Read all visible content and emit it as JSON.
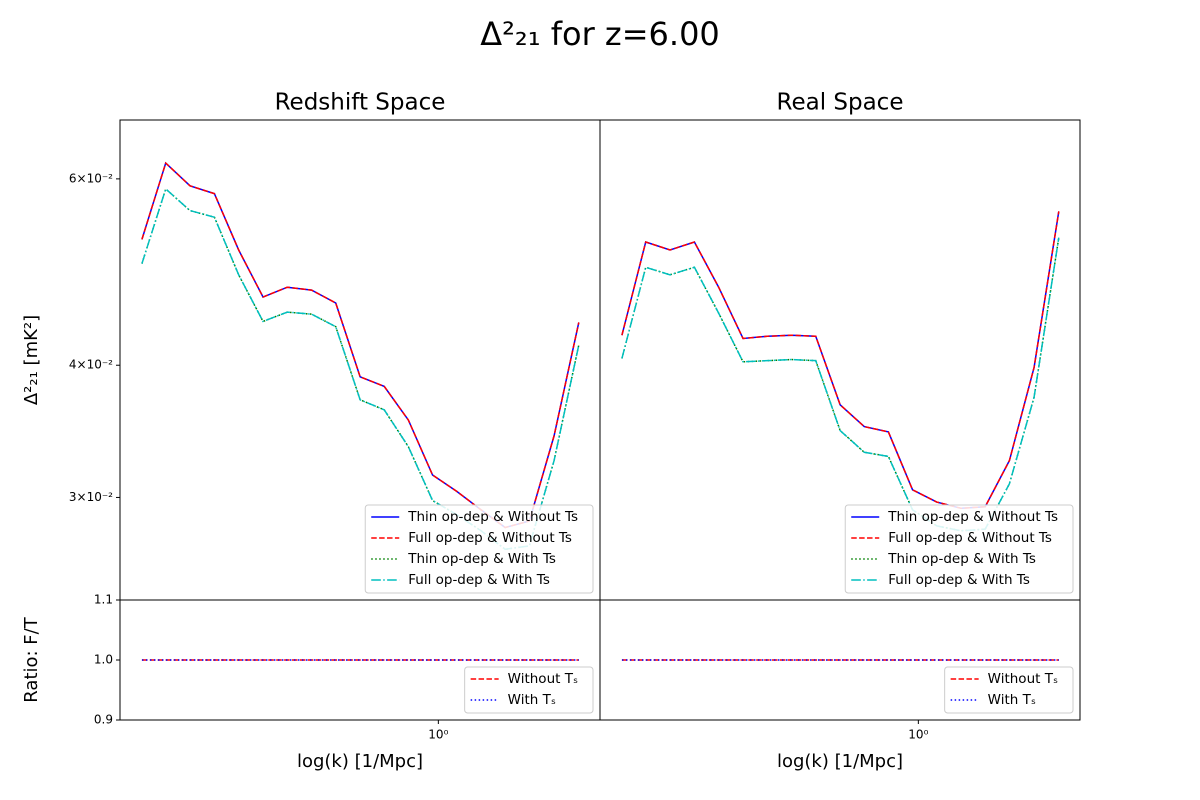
{
  "title": "Δ²₂₁ for z=6.00",
  "chart_data": [
    {
      "type": "line",
      "title": "Redshift Space",
      "ylabel": "Δ²₂₁ [mK²]",
      "x": [
        0.273,
        0.303,
        0.337,
        0.375,
        0.417,
        0.464,
        0.516,
        0.574,
        0.638,
        0.71,
        0.789,
        0.877,
        0.975,
        1.084,
        1.206,
        1.34,
        1.49,
        1.66,
        1.85
      ],
      "xlim": [
        0.248,
        2.03
      ],
      "xscale": "log",
      "ylim": [
        0.024,
        0.0682
      ],
      "yscale": "log",
      "yticks": [
        {
          "value": 0.06,
          "label": "6×10⁻²"
        },
        {
          "value": 0.04,
          "label": "4×10⁻²"
        },
        {
          "value": 0.03,
          "label": "3×10⁻²"
        }
      ],
      "legend": "lower right",
      "series": [
        {
          "name": "Thin op-dep & Without Ts",
          "color": "#0000ff",
          "linestyle": "solid",
          "values": [
            0.0526,
            0.0621,
            0.0591,
            0.0581,
            0.0514,
            0.0464,
            0.0474,
            0.0471,
            0.0458,
            0.039,
            0.0382,
            0.0355,
            0.0315,
            0.0304,
            0.0292,
            0.0281,
            0.0285,
            0.0343,
            0.0439
          ]
        },
        {
          "name": "Full op-dep & Without Ts",
          "color": "#ff0000",
          "linestyle": "dashed",
          "values": [
            0.0526,
            0.0621,
            0.0591,
            0.0581,
            0.0514,
            0.0464,
            0.0474,
            0.0471,
            0.0458,
            0.039,
            0.0382,
            0.0355,
            0.0315,
            0.0304,
            0.0292,
            0.0281,
            0.0285,
            0.0343,
            0.0439
          ]
        },
        {
          "name": "Thin op-dep & With Ts",
          "color": "#008000",
          "linestyle": "dotted",
          "values": [
            0.0499,
            0.0587,
            0.056,
            0.0552,
            0.0487,
            0.044,
            0.0449,
            0.0447,
            0.0435,
            0.0371,
            0.0363,
            0.0335,
            0.0298,
            0.0289,
            0.0279,
            0.0268,
            0.027,
            0.0325,
            0.0418
          ]
        },
        {
          "name": "Full op-dep & With Ts",
          "color": "#00bfbf",
          "linestyle": "dashdot",
          "values": [
            0.0499,
            0.0587,
            0.056,
            0.0552,
            0.0487,
            0.044,
            0.0449,
            0.0447,
            0.0435,
            0.0371,
            0.0363,
            0.0335,
            0.0298,
            0.0289,
            0.0279,
            0.0268,
            0.027,
            0.0325,
            0.0418
          ]
        }
      ]
    },
    {
      "type": "line",
      "title": "Real Space",
      "x": [
        0.273,
        0.303,
        0.337,
        0.375,
        0.417,
        0.464,
        0.516,
        0.574,
        0.638,
        0.71,
        0.789,
        0.877,
        0.975,
        1.084,
        1.206,
        1.34,
        1.49,
        1.66,
        1.85
      ],
      "xlim": [
        0.248,
        2.03
      ],
      "xscale": "log",
      "ylim": [
        0.024,
        0.0682
      ],
      "yscale": "log",
      "legend": "lower right",
      "series": [
        {
          "name": "Thin op-dep & Without Ts",
          "color": "#0000ff",
          "linestyle": "solid",
          "values": [
            0.0427,
            0.0523,
            0.0514,
            0.0523,
            0.0474,
            0.0424,
            0.0426,
            0.0427,
            0.0426,
            0.0367,
            0.035,
            0.0346,
            0.0305,
            0.0297,
            0.0293,
            0.0294,
            0.0325,
            0.0398,
            0.0559
          ]
        },
        {
          "name": "Full op-dep & Without Ts",
          "color": "#ff0000",
          "linestyle": "dashed",
          "values": [
            0.0427,
            0.0523,
            0.0514,
            0.0523,
            0.0474,
            0.0424,
            0.0426,
            0.0427,
            0.0426,
            0.0367,
            0.035,
            0.0346,
            0.0305,
            0.0297,
            0.0293,
            0.0294,
            0.0325,
            0.0398,
            0.0559
          ]
        },
        {
          "name": "Thin op-dep & With Ts",
          "color": "#008000",
          "linestyle": "dotted",
          "values": [
            0.0406,
            0.0495,
            0.0487,
            0.0495,
            0.0448,
            0.0403,
            0.0404,
            0.0405,
            0.0404,
            0.0347,
            0.0331,
            0.0328,
            0.0292,
            0.0282,
            0.0279,
            0.028,
            0.0309,
            0.0373,
            0.0528
          ]
        },
        {
          "name": "Full op-dep & With Ts",
          "color": "#00bfbf",
          "linestyle": "dashdot",
          "values": [
            0.0406,
            0.0495,
            0.0487,
            0.0495,
            0.0448,
            0.0403,
            0.0404,
            0.0405,
            0.0404,
            0.0347,
            0.0331,
            0.0328,
            0.0292,
            0.0282,
            0.0279,
            0.028,
            0.0309,
            0.0373,
            0.0528
          ]
        }
      ]
    },
    {
      "type": "line",
      "ylabel": "Ratio: F/T",
      "xlabel": "log(k) [1/Mpc]",
      "x": [
        0.273,
        0.303,
        0.337,
        0.375,
        0.417,
        0.464,
        0.516,
        0.574,
        0.638,
        0.71,
        0.789,
        0.877,
        0.975,
        1.084,
        1.206,
        1.34,
        1.49,
        1.66,
        1.85
      ],
      "xlim": [
        0.248,
        2.03
      ],
      "xscale": "log",
      "ylim": [
        0.9,
        1.1
      ],
      "yscale": "linear",
      "xticks": [
        {
          "value": 1,
          "label": "10⁰"
        }
      ],
      "yticks": [
        {
          "value": 0.9,
          "label": "0.9"
        },
        {
          "value": 1.0,
          "label": "1.0"
        },
        {
          "value": 1.1,
          "label": "1.1"
        }
      ],
      "legend": "lower right",
      "series": [
        {
          "name": "Without Tₛ",
          "color": "#ff0000",
          "linestyle": "dashed",
          "values": [
            1,
            1,
            1,
            1,
            1,
            1,
            1,
            1,
            1,
            1,
            1,
            1,
            1,
            1,
            1,
            1,
            1,
            1,
            1
          ]
        },
        {
          "name": "With Tₛ",
          "color": "#0000ff",
          "linestyle": "dotted",
          "values": [
            1,
            1,
            1,
            1,
            1,
            1,
            1,
            1,
            1,
            1,
            1,
            1,
            1,
            1,
            1,
            1,
            1,
            1,
            1
          ]
        }
      ]
    },
    {
      "type": "line",
      "xlabel": "log(k) [1/Mpc]",
      "x": [
        0.273,
        0.303,
        0.337,
        0.375,
        0.417,
        0.464,
        0.516,
        0.574,
        0.638,
        0.71,
        0.789,
        0.877,
        0.975,
        1.084,
        1.206,
        1.34,
        1.49,
        1.66,
        1.85
      ],
      "xlim": [
        0.248,
        2.03
      ],
      "xscale": "log",
      "ylim": [
        0.9,
        1.1
      ],
      "yscale": "linear",
      "xticks": [
        {
          "value": 1,
          "label": "10⁰"
        }
      ],
      "legend": "lower right",
      "series": [
        {
          "name": "Without Tₛ",
          "color": "#ff0000",
          "linestyle": "dashed",
          "values": [
            1,
            1,
            1,
            1,
            1,
            1,
            1,
            1,
            1,
            1,
            1,
            1,
            1,
            1,
            1,
            1,
            1,
            1,
            1
          ]
        },
        {
          "name": "With Tₛ",
          "color": "#0000ff",
          "linestyle": "dotted",
          "values": [
            1,
            1,
            1,
            1,
            1,
            1,
            1,
            1,
            1,
            1,
            1,
            1,
            1,
            1,
            1,
            1,
            1,
            1,
            1
          ]
        }
      ]
    }
  ]
}
